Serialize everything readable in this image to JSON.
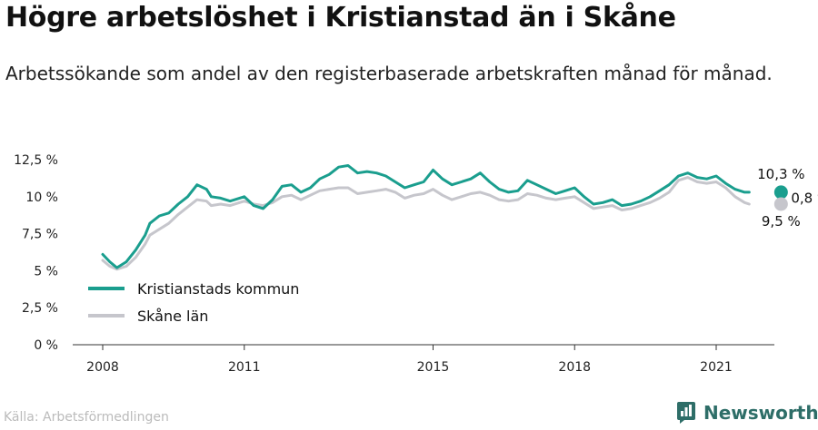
{
  "title": "Högre arbetslöshet i Kristianstad än i Skåne",
  "subtitle": "Arbetssökande som andel av den registerbaserade arbetskraften månad för månad.",
  "source": "Källa: Arbetsförmedlingen",
  "brand": "Newsworthy",
  "chart_data": {
    "type": "line",
    "title": "Högre arbetslöshet i Kristianstad än i Skåne",
    "ylim": [
      0,
      12.5
    ],
    "yticks": [
      0,
      2.5,
      5,
      7.5,
      10,
      12.5
    ],
    "ytick_labels": [
      "0 %",
      "2,5 %",
      "5 %",
      "7,5 %",
      "10 %",
      "12,5 %"
    ],
    "xlim": [
      2007.5,
      2022.3
    ],
    "xticks": [
      2008,
      2011,
      2015,
      2018,
      2021
    ],
    "xtick_labels": [
      "2008",
      "2011",
      "2015",
      "2018",
      "2021"
    ],
    "grid": false,
    "legend_position": "bottom-left",
    "annotations": {
      "last_kommun": "10,3 %",
      "difference": "0,8 %",
      "last_lan": "9,5 %"
    },
    "series": [
      {
        "name": "Kristianstads kommun",
        "color": "#1a9e8e",
        "x": [
          2008.0,
          2008.15,
          2008.3,
          2008.5,
          2008.7,
          2008.9,
          2009.0,
          2009.2,
          2009.4,
          2009.6,
          2009.8,
          2010.0,
          2010.2,
          2010.3,
          2010.5,
          2010.7,
          2010.9,
          2011.0,
          2011.2,
          2011.4,
          2011.6,
          2011.8,
          2012.0,
          2012.2,
          2012.4,
          2012.6,
          2012.8,
          2013.0,
          2013.2,
          2013.4,
          2013.6,
          2013.8,
          2014.0,
          2014.2,
          2014.4,
          2014.6,
          2014.8,
          2015.0,
          2015.2,
          2015.4,
          2015.6,
          2015.8,
          2016.0,
          2016.2,
          2016.4,
          2016.6,
          2016.8,
          2017.0,
          2017.2,
          2017.4,
          2017.6,
          2017.8,
          2018.0,
          2018.2,
          2018.4,
          2018.6,
          2018.8,
          2019.0,
          2019.2,
          2019.4,
          2019.6,
          2019.8,
          2020.0,
          2020.2,
          2020.4,
          2020.6,
          2020.8,
          2021.0,
          2021.2,
          2021.4,
          2021.6,
          2021.7
        ],
        "values": [
          6.1,
          5.6,
          5.2,
          5.6,
          6.4,
          7.4,
          8.2,
          8.7,
          8.9,
          9.5,
          10.0,
          10.8,
          10.5,
          10.0,
          9.9,
          9.7,
          9.9,
          10.0,
          9.4,
          9.2,
          9.8,
          10.7,
          10.8,
          10.3,
          10.6,
          11.2,
          11.5,
          12.0,
          12.1,
          11.6,
          11.7,
          11.6,
          11.4,
          11.0,
          10.6,
          10.8,
          11.0,
          11.8,
          11.2,
          10.8,
          11.0,
          11.2,
          11.6,
          11.0,
          10.5,
          10.3,
          10.4,
          11.1,
          10.8,
          10.5,
          10.2,
          10.4,
          10.6,
          10.0,
          9.5,
          9.6,
          9.8,
          9.4,
          9.5,
          9.7,
          10.0,
          10.4,
          10.8,
          11.4,
          11.6,
          11.3,
          11.2,
          11.4,
          10.9,
          10.5,
          10.3,
          10.3
        ]
      },
      {
        "name": "Skåne län",
        "color": "#c6c6cc",
        "x": [
          2008.0,
          2008.15,
          2008.3,
          2008.5,
          2008.7,
          2008.9,
          2009.0,
          2009.2,
          2009.4,
          2009.6,
          2009.8,
          2010.0,
          2010.2,
          2010.3,
          2010.5,
          2010.7,
          2010.9,
          2011.0,
          2011.2,
          2011.4,
          2011.6,
          2011.8,
          2012.0,
          2012.2,
          2012.4,
          2012.6,
          2012.8,
          2013.0,
          2013.2,
          2013.4,
          2013.6,
          2013.8,
          2014.0,
          2014.2,
          2014.4,
          2014.6,
          2014.8,
          2015.0,
          2015.2,
          2015.4,
          2015.6,
          2015.8,
          2016.0,
          2016.2,
          2016.4,
          2016.6,
          2016.8,
          2017.0,
          2017.2,
          2017.4,
          2017.6,
          2017.8,
          2018.0,
          2018.2,
          2018.4,
          2018.6,
          2018.8,
          2019.0,
          2019.2,
          2019.4,
          2019.6,
          2019.8,
          2020.0,
          2020.2,
          2020.4,
          2020.6,
          2020.8,
          2021.0,
          2021.2,
          2021.4,
          2021.6,
          2021.7
        ],
        "values": [
          5.7,
          5.3,
          5.1,
          5.3,
          5.9,
          6.8,
          7.4,
          7.8,
          8.2,
          8.8,
          9.3,
          9.8,
          9.7,
          9.4,
          9.5,
          9.4,
          9.6,
          9.7,
          9.5,
          9.4,
          9.6,
          10.0,
          10.1,
          9.8,
          10.1,
          10.4,
          10.5,
          10.6,
          10.6,
          10.2,
          10.3,
          10.4,
          10.5,
          10.3,
          9.9,
          10.1,
          10.2,
          10.5,
          10.1,
          9.8,
          10.0,
          10.2,
          10.3,
          10.1,
          9.8,
          9.7,
          9.8,
          10.2,
          10.1,
          9.9,
          9.8,
          9.9,
          10.0,
          9.6,
          9.2,
          9.3,
          9.4,
          9.1,
          9.2,
          9.4,
          9.6,
          9.9,
          10.3,
          11.1,
          11.3,
          11.0,
          10.9,
          11.0,
          10.6,
          10.0,
          9.6,
          9.5
        ]
      }
    ]
  }
}
